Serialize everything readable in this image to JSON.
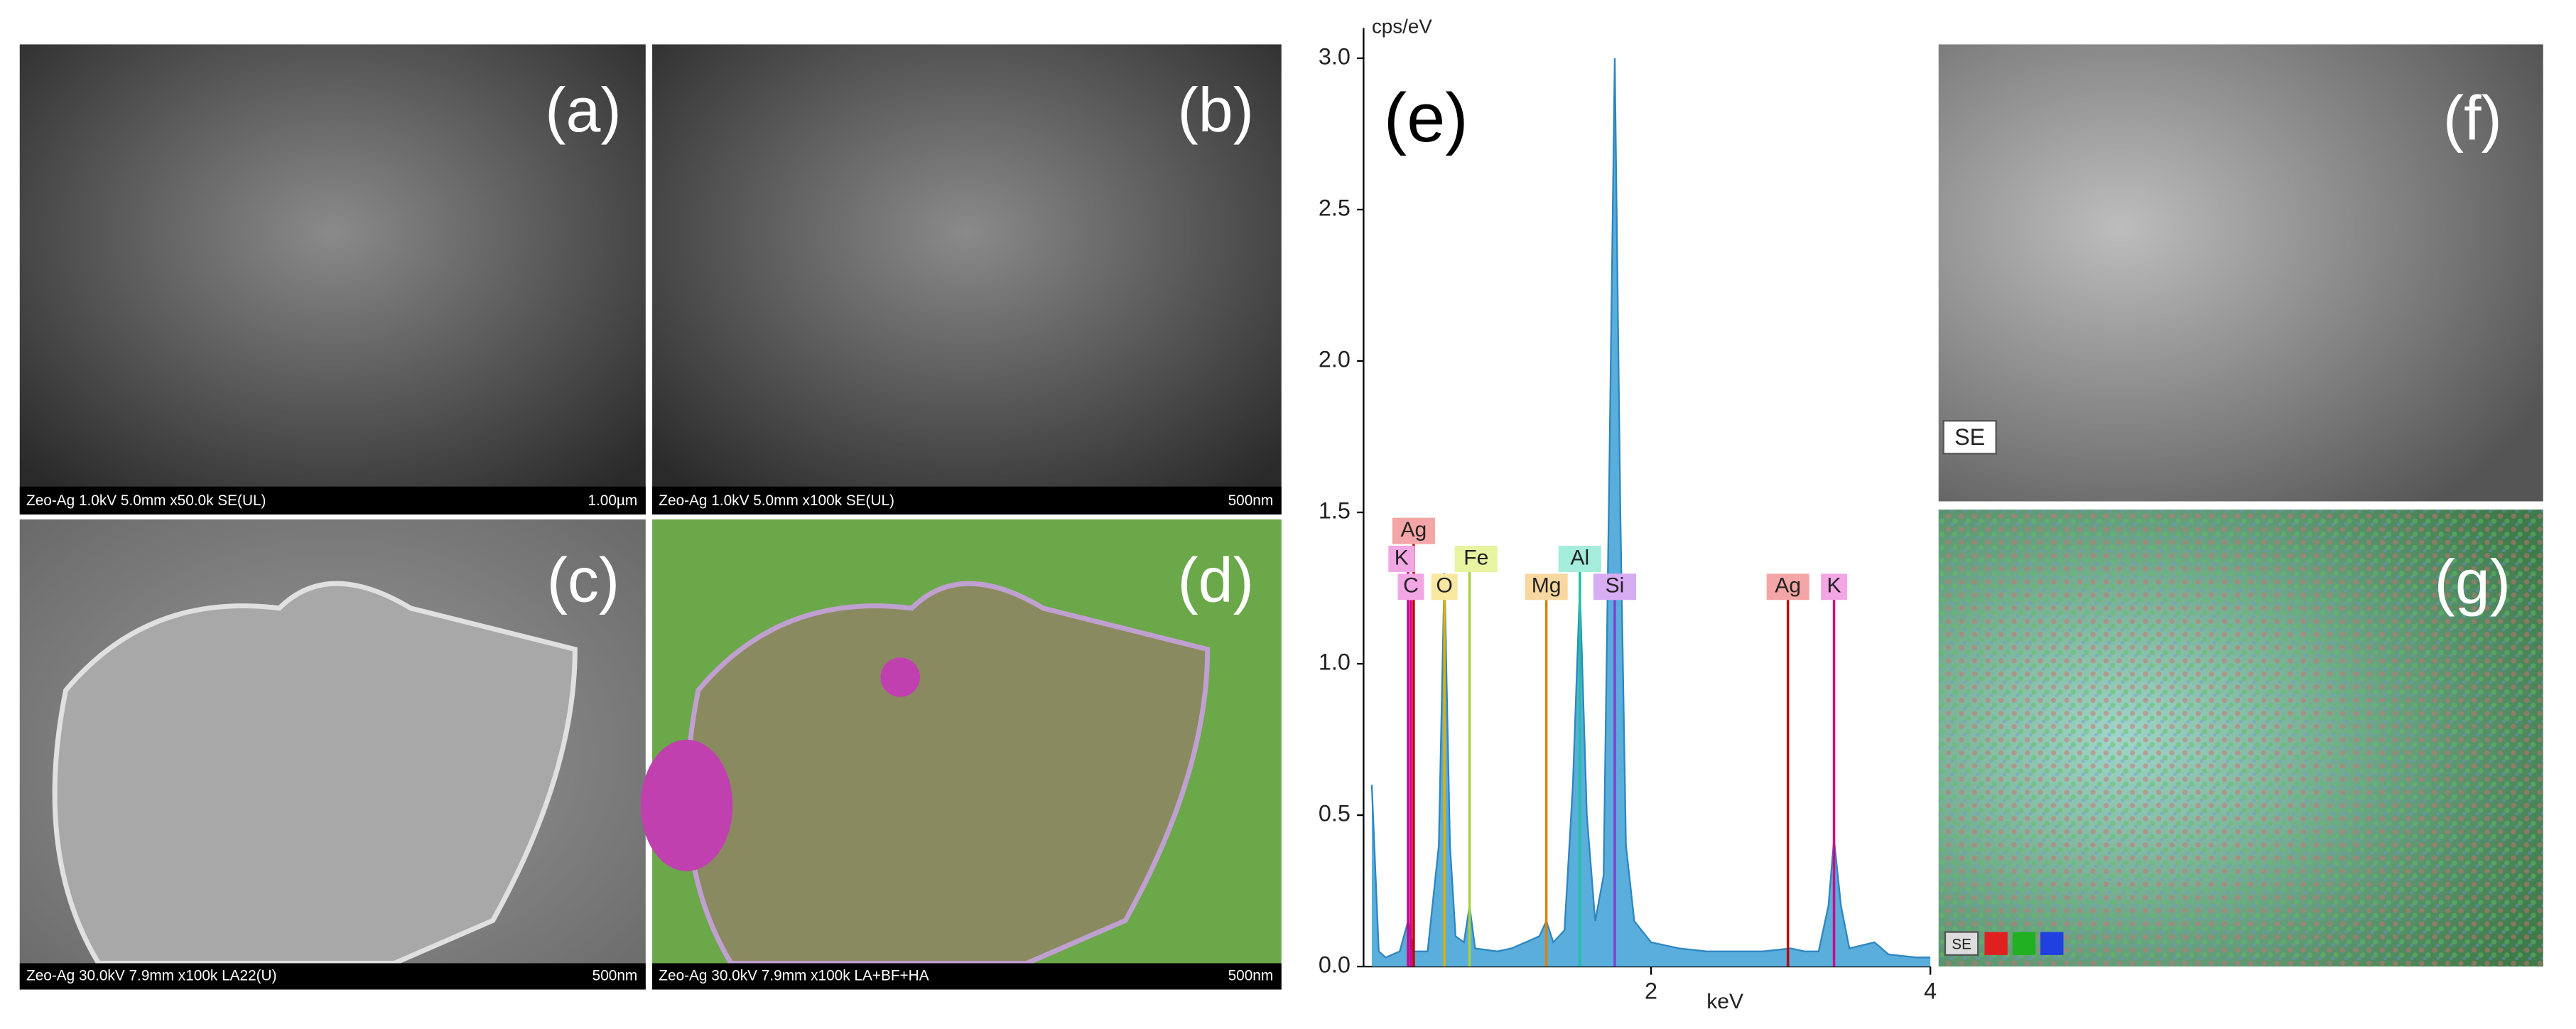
{
  "panels": [
    {
      "label": "(a)",
      "caption": "Zeo-Ag 1.0kV 5.0mm x50.0k SE(UL)",
      "scale": "1.00µm"
    },
    {
      "label": "(b)",
      "caption": "Zeo-Ag 1.0kV 5.0mm x100k SE(UL)",
      "scale": "500nm"
    },
    {
      "label": "(c)",
      "caption": "Zeo-Ag 30.0kV 7.9mm x100k LA22(U)",
      "scale": "500nm"
    },
    {
      "label": "(d)",
      "caption": "Zeo-Ag 30.0kV 7.9mm x100k LA+BF+HA",
      "scale": "500nm"
    },
    {
      "label": "(f)",
      "tag": "SE"
    },
    {
      "label": "(g)",
      "tag": "SE"
    }
  ],
  "chart_data": {
    "type": "area",
    "label": "(e)",
    "ylabel": "cps/eV",
    "xlabel": "keV",
    "color": "#5aaedc",
    "line_color": "#2f86c0",
    "xlim": [
      0,
      4
    ],
    "ylim": [
      0,
      3.1
    ],
    "xticks": [
      2,
      4
    ],
    "yticks": [
      {
        "value": 0,
        "label": "0.0"
      },
      {
        "value": 0.5,
        "label": "0.5"
      },
      {
        "value": 1,
        "label": "1.0"
      },
      {
        "value": 1.5,
        "label": "1.5"
      },
      {
        "value": 2,
        "label": "2.0"
      },
      {
        "value": 2.5,
        "label": "2.5"
      },
      {
        "value": 3,
        "label": "3.0"
      }
    ],
    "x": [
      0.0,
      0.05,
      0.1,
      0.2,
      0.26,
      0.3,
      0.4,
      0.48,
      0.52,
      0.56,
      0.6,
      0.66,
      0.7,
      0.74,
      0.9,
      1.0,
      1.2,
      1.25,
      1.3,
      1.38,
      1.44,
      1.49,
      1.54,
      1.6,
      1.66,
      1.7,
      1.74,
      1.78,
      1.82,
      1.88,
      2.0,
      2.2,
      2.4,
      2.6,
      2.8,
      3.0,
      3.1,
      3.2,
      3.27,
      3.31,
      3.36,
      3.42,
      3.6,
      3.7,
      3.9,
      4.0
    ],
    "values": [
      0.6,
      0.05,
      0.03,
      0.05,
      0.15,
      0.05,
      0.05,
      0.4,
      1.3,
      0.4,
      0.1,
      0.08,
      0.2,
      0.06,
      0.05,
      0.06,
      0.1,
      0.15,
      0.08,
      0.12,
      0.6,
      1.25,
      0.5,
      0.15,
      0.3,
      1.6,
      3.0,
      1.5,
      0.4,
      0.15,
      0.08,
      0.06,
      0.05,
      0.05,
      0.05,
      0.06,
      0.05,
      0.05,
      0.2,
      0.42,
      0.2,
      0.06,
      0.08,
      0.04,
      0.03,
      0.03
    ],
    "elements": [
      {
        "name": "Ag",
        "energy": 0.3,
        "color": "#c00000",
        "box": "#f4a6a6"
      },
      {
        "name": "K",
        "energy": 0.26,
        "color": "#d0008a",
        "box": "#f2a6e4"
      },
      {
        "name": "C",
        "energy": 0.28,
        "color": "#d0008a",
        "box": "#f2a6e4"
      },
      {
        "name": "O",
        "energy": 0.52,
        "color": "#e0b000",
        "box": "#f8e8a0"
      },
      {
        "name": "Fe",
        "energy": 0.7,
        "color": "#a8d040",
        "box": "#e8f4a0"
      },
      {
        "name": "Mg",
        "energy": 1.25,
        "color": "#e08000",
        "box": "#f8d8a0"
      },
      {
        "name": "Al",
        "energy": 1.49,
        "color": "#20c0a0",
        "box": "#a4ecdc"
      },
      {
        "name": "Si",
        "energy": 1.74,
        "color": "#8040d0",
        "box": "#d8acf2"
      },
      {
        "name": "Ag",
        "energy": 2.98,
        "color": "#c00000",
        "box": "#f4a6a6"
      },
      {
        "name": "K",
        "energy": 3.31,
        "color": "#d0008a",
        "box": "#f2a6e4"
      }
    ]
  }
}
